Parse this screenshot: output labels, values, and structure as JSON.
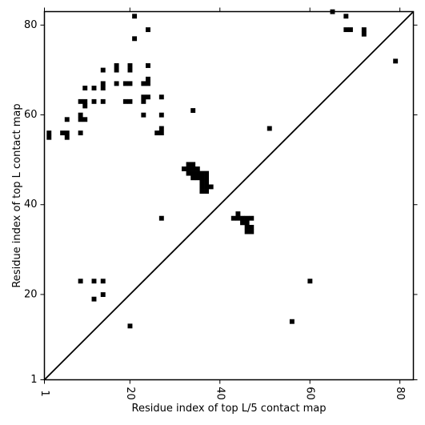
{
  "chart_data": {
    "type": "heatmap",
    "title": "",
    "xlabel": "Residue index of top L/5 contact map",
    "ylabel": "Residue index of top L contact map",
    "xlim": [
      1,
      83
    ],
    "ylim": [
      1,
      83
    ],
    "x_ticks": [
      {
        "value": 1,
        "label": "1"
      },
      {
        "value": 20,
        "label": "20"
      },
      {
        "value": 40,
        "label": "40"
      },
      {
        "value": 60,
        "label": "60"
      },
      {
        "value": 80,
        "label": "80"
      }
    ],
    "y_ticks": [
      {
        "value": 1,
        "label": "1"
      },
      {
        "value": 20,
        "label": "20"
      },
      {
        "value": 40,
        "label": "40"
      },
      {
        "value": 60,
        "label": "60"
      },
      {
        "value": 80,
        "label": "80"
      }
    ],
    "diagonal": true,
    "cell_color": "#000000",
    "upper_contacts": [
      [
        21,
        82
      ],
      [
        24,
        79
      ],
      [
        21,
        77
      ],
      [
        17,
        71
      ],
      [
        24,
        71
      ],
      [
        20,
        71
      ],
      [
        14,
        70
      ],
      [
        17,
        70
      ],
      [
        20,
        70
      ],
      [
        17,
        67
      ],
      [
        19,
        67
      ],
      [
        20,
        67
      ],
      [
        23,
        67
      ],
      [
        24,
        67
      ],
      [
        24,
        68
      ],
      [
        14,
        67
      ],
      [
        14,
        66
      ],
      [
        10,
        66
      ],
      [
        12,
        66
      ],
      [
        9,
        63
      ],
      [
        10,
        63
      ],
      [
        10,
        62
      ],
      [
        12,
        63
      ],
      [
        14,
        63
      ],
      [
        19,
        63
      ],
      [
        20,
        63
      ],
      [
        23,
        64
      ],
      [
        24,
        64
      ],
      [
        27,
        64
      ],
      [
        23,
        63
      ],
      [
        23,
        60
      ],
      [
        27,
        60
      ],
      [
        9,
        60
      ],
      [
        9,
        59
      ],
      [
        10,
        59
      ],
      [
        6,
        59
      ],
      [
        27,
        57
      ],
      [
        26,
        56
      ],
      [
        27,
        56
      ],
      [
        9,
        56
      ],
      [
        2,
        56
      ],
      [
        2,
        55
      ],
      [
        5,
        56
      ],
      [
        6,
        56
      ],
      [
        6,
        55
      ],
      [
        34,
        61
      ],
      [
        51,
        57
      ],
      [
        65,
        83
      ],
      [
        68,
        82
      ],
      [
        68,
        79
      ],
      [
        69,
        79
      ],
      [
        72,
        79
      ],
      [
        72,
        78
      ],
      [
        79,
        72
      ]
    ],
    "lower_contacts": [
      [
        32,
        48
      ],
      [
        33,
        48
      ],
      [
        33,
        49
      ],
      [
        34,
        49
      ],
      [
        34,
        48
      ],
      [
        33,
        47
      ],
      [
        34,
        47
      ],
      [
        35,
        47
      ],
      [
        35,
        48
      ],
      [
        34,
        46
      ],
      [
        35,
        46
      ],
      [
        36,
        46
      ],
      [
        36,
        47
      ],
      [
        37,
        47
      ],
      [
        37,
        46
      ],
      [
        37,
        45
      ],
      [
        36,
        45
      ],
      [
        37,
        44
      ],
      [
        36,
        44
      ],
      [
        37,
        43
      ],
      [
        36,
        43
      ],
      [
        38,
        44
      ],
      [
        27,
        37
      ],
      [
        43,
        37
      ],
      [
        44,
        37
      ],
      [
        44,
        38
      ],
      [
        45,
        37
      ],
      [
        45,
        36
      ],
      [
        46,
        36
      ],
      [
        46,
        37
      ],
      [
        47,
        37
      ],
      [
        46,
        35
      ],
      [
        46,
        34
      ],
      [
        47,
        34
      ],
      [
        47,
        35
      ],
      [
        9,
        23
      ],
      [
        12,
        23
      ],
      [
        14,
        23
      ],
      [
        14,
        20
      ],
      [
        12,
        19
      ],
      [
        20,
        13
      ],
      [
        60,
        23
      ],
      [
        56,
        14
      ]
    ]
  }
}
